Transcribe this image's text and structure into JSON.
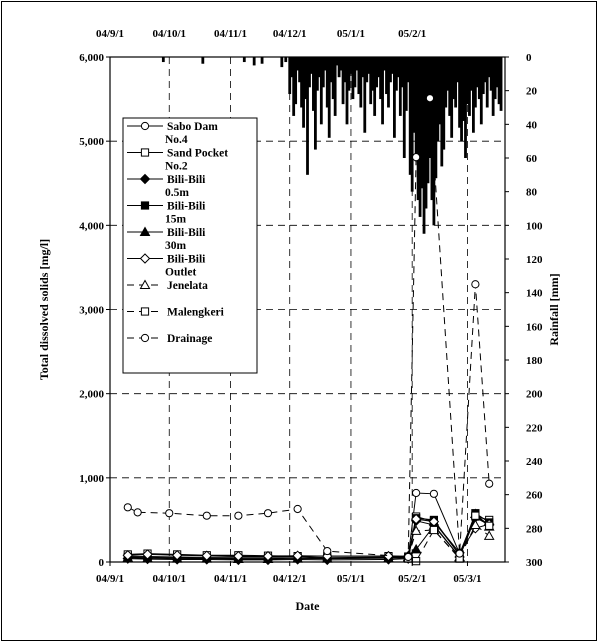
{
  "chart_data": {
    "type": "line",
    "xlabel": "Date",
    "ylabel": "Total dissolved solids [mg/l]",
    "y2label": "Rainfall [mm]",
    "x_bottom_ticks": [
      "04/9/1",
      "04/10/1",
      "04/11/1",
      "04/12/1",
      "05/1/1",
      "05/2/1",
      "05/3/1"
    ],
    "x_top_ticks": [
      "04/9/1",
      "04/10/1",
      "04/11/1",
      "04/12/1",
      "05/1/1",
      "05/2/1"
    ],
    "y_ticks": [
      "0",
      "1,000",
      "2,000",
      "3,000",
      "4,000",
      "5,000",
      "6,000"
    ],
    "y2_ticks": [
      "0",
      "20",
      "40",
      "60",
      "80",
      "100",
      "120",
      "140",
      "160",
      "180",
      "200",
      "220",
      "240",
      "260",
      "280",
      "300"
    ],
    "ylim": [
      0,
      6000
    ],
    "y2lim": [
      0,
      300
    ],
    "y2_inverted": true,
    "xlim": [
      "2004-09-01",
      "2005-03-20"
    ],
    "grid": true,
    "legend_position": "upper-left",
    "series": [
      {
        "name": "Sabo Dam No.4",
        "marker": "circle-open",
        "line": "solid",
        "x": [
          "2004-09-10",
          "2004-09-20",
          "2004-10-05",
          "2004-10-20",
          "2004-11-05",
          "2004-11-20",
          "2004-12-05",
          "2004-12-20",
          "2005-01-20",
          "2005-01-30",
          "2005-02-03",
          "2005-02-12",
          "2005-02-25",
          "2005-03-05",
          "2005-03-12"
        ],
        "y": [
          70,
          65,
          60,
          55,
          60,
          60,
          65,
          50,
          60,
          60,
          820,
          810,
          100,
          560,
          440
        ]
      },
      {
        "name": "Sand Pocket No.2",
        "marker": "square-open",
        "line": "solid",
        "x": [
          "2004-09-10",
          "2004-09-20",
          "2004-10-05",
          "2004-10-20",
          "2004-11-05",
          "2004-11-20",
          "2004-12-05",
          "2004-12-20",
          "2005-01-20",
          "2005-01-30",
          "2005-02-03",
          "2005-02-12",
          "2005-02-25",
          "2005-03-05",
          "2005-03-12"
        ],
        "y": [
          90,
          100,
          90,
          80,
          80,
          75,
          70,
          70,
          70,
          65,
          540,
          480,
          90,
          540,
          500
        ]
      },
      {
        "name": "Bili-Bili 0.5m",
        "marker": "diamond-filled",
        "line": "solid",
        "x": [
          "2004-09-10",
          "2004-09-20",
          "2004-10-05",
          "2004-10-20",
          "2004-11-05",
          "2004-11-20",
          "2004-12-05",
          "2004-12-20",
          "2005-01-20",
          "2005-01-30",
          "2005-02-03",
          "2005-02-12",
          "2005-02-25",
          "2005-03-05",
          "2005-03-12"
        ],
        "y": [
          40,
          35,
          30,
          30,
          25,
          25,
          30,
          25,
          30,
          40,
          490,
          440,
          60,
          530,
          440
        ]
      },
      {
        "name": "Bili-Bili 15m",
        "marker": "square-filled",
        "line": "solid",
        "x": [
          "2004-09-10",
          "2004-09-20",
          "2004-10-05",
          "2004-10-20",
          "2004-11-05",
          "2004-11-20",
          "2004-12-05",
          "2004-12-20",
          "2005-01-20",
          "2005-01-30",
          "2005-02-03",
          "2005-02-12",
          "2005-02-25",
          "2005-03-05",
          "2005-03-12"
        ],
        "y": [
          60,
          55,
          50,
          45,
          45,
          45,
          50,
          45,
          50,
          55,
          520,
          500,
          80,
          580,
          470
        ]
      },
      {
        "name": "Bili-Bili 30m",
        "marker": "triangle-filled",
        "line": "solid",
        "x": [
          "2004-09-10",
          "2004-09-20",
          "2004-10-05",
          "2004-10-20",
          "2004-11-05",
          "2004-11-20",
          "2004-12-05",
          "2004-12-20",
          "2005-01-20",
          "2005-01-30",
          "2005-02-03",
          "2005-02-12",
          "2005-02-25",
          "2005-03-05",
          "2005-03-12"
        ],
        "y": [
          50,
          45,
          40,
          40,
          35,
          35,
          40,
          40,
          45,
          50,
          150,
          430,
          60,
          570,
          420
        ]
      },
      {
        "name": "Bili-Bili Outlet",
        "marker": "diamond-open",
        "line": "solid",
        "x": [
          "2004-09-10",
          "2004-09-20",
          "2004-10-05",
          "2004-10-20",
          "2004-11-05",
          "2004-11-20",
          "2004-12-05",
          "2004-12-20",
          "2005-01-20",
          "2005-01-30",
          "2005-02-03",
          "2005-02-12",
          "2005-02-25",
          "2005-03-05",
          "2005-03-12"
        ],
        "y": [
          80,
          90,
          80,
          75,
          70,
          70,
          75,
          70,
          70,
          70,
          510,
          480,
          110,
          400,
          450
        ]
      },
      {
        "name": "Jenelata",
        "marker": "triangle-open",
        "line": "dashed",
        "x": [
          "2005-01-30",
          "2005-02-03",
          "2005-02-12",
          "2005-02-25",
          "2005-03-05",
          "2005-03-12"
        ],
        "y": [
          60,
          370,
          380,
          50,
          440,
          310
        ]
      },
      {
        "name": "Malengkeri",
        "marker": "square-open",
        "line": "dashed",
        "x": [
          "2005-01-30",
          "2005-02-03",
          "2005-02-12",
          "2005-02-25",
          "2005-03-05",
          "2005-03-12"
        ],
        "y": [
          40,
          10,
          380,
          40,
          550,
          430
        ]
      },
      {
        "name": "Drainage",
        "marker": "circle-open",
        "line": "dashed",
        "x": [
          "2004-09-10",
          "2004-09-15",
          "2004-10-01",
          "2004-10-20",
          "2004-11-05",
          "2004-11-20",
          "2004-12-05",
          "2004-12-20",
          "2005-01-30",
          "2005-02-03",
          "2005-02-10",
          "2005-02-25",
          "2005-03-05",
          "2005-03-12"
        ],
        "y": [
          650,
          590,
          580,
          550,
          550,
          580,
          630,
          130,
          60,
          4810,
          5510,
          100,
          3300,
          930
        ]
      }
    ],
    "rainfall": {
      "type": "bar",
      "axis": "y2",
      "x": [
        "2004-09-28",
        "2004-10-18",
        "2004-11-08",
        "2004-11-13",
        "2004-11-17",
        "2004-11-27",
        "2004-11-29",
        "2004-12-01",
        "2004-12-02",
        "2004-12-03",
        "2004-12-04",
        "2004-12-05",
        "2004-12-06",
        "2004-12-07",
        "2004-12-08",
        "2004-12-09",
        "2004-12-10",
        "2004-12-11",
        "2004-12-12",
        "2004-12-13",
        "2004-12-14",
        "2004-12-15",
        "2004-12-16",
        "2004-12-17",
        "2004-12-18",
        "2004-12-19",
        "2004-12-20",
        "2004-12-21",
        "2004-12-22",
        "2004-12-23",
        "2004-12-24",
        "2004-12-25",
        "2004-12-26",
        "2004-12-27",
        "2004-12-28",
        "2004-12-29",
        "2004-12-30",
        "2004-12-31",
        "2005-01-01",
        "2005-01-02",
        "2005-01-03",
        "2005-01-04",
        "2005-01-05",
        "2005-01-06",
        "2005-01-07",
        "2005-01-08",
        "2005-01-09",
        "2005-01-10",
        "2005-01-11",
        "2005-01-12",
        "2005-01-13",
        "2005-01-14",
        "2005-01-15",
        "2005-01-16",
        "2005-01-17",
        "2005-01-18",
        "2005-01-19",
        "2005-01-20",
        "2005-01-21",
        "2005-01-22",
        "2005-01-23",
        "2005-01-24",
        "2005-01-25",
        "2005-01-26",
        "2005-01-27",
        "2005-01-28",
        "2005-01-29",
        "2005-01-30",
        "2005-01-31",
        "2005-02-01",
        "2005-02-02",
        "2005-02-03",
        "2005-02-04",
        "2005-02-05",
        "2005-02-06",
        "2005-02-07",
        "2005-02-08",
        "2005-02-09",
        "2005-02-10",
        "2005-02-11",
        "2005-02-12",
        "2005-02-13",
        "2005-02-14",
        "2005-02-15",
        "2005-02-16",
        "2005-02-17",
        "2005-02-18",
        "2005-02-19",
        "2005-02-20",
        "2005-02-21",
        "2005-02-22",
        "2005-02-23",
        "2005-02-24",
        "2005-02-25",
        "2005-02-26",
        "2005-02-27",
        "2005-02-28",
        "2005-03-01",
        "2005-03-02",
        "2005-03-03",
        "2005-03-04",
        "2005-03-05",
        "2005-03-06",
        "2005-03-07",
        "2005-03-08",
        "2005-03-09",
        "2005-03-10",
        "2005-03-11",
        "2005-03-12",
        "2005-03-13",
        "2005-03-14",
        "2005-03-15",
        "2005-03-16",
        "2005-03-17",
        "2005-03-18"
      ],
      "values": [
        3,
        4,
        3,
        5,
        4,
        6,
        3,
        22,
        12,
        35,
        28,
        8,
        15,
        30,
        42,
        25,
        70,
        18,
        10,
        32,
        55,
        20,
        12,
        40,
        18,
        8,
        30,
        48,
        15,
        25,
        35,
        5,
        12,
        8,
        28,
        15,
        40,
        20,
        10,
        25,
        18,
        8,
        22,
        30,
        12,
        45,
        15,
        10,
        28,
        20,
        35,
        18,
        12,
        25,
        40,
        8,
        22,
        30,
        15,
        10,
        48,
        20,
        12,
        35,
        18,
        60,
        32,
        15,
        70,
        80,
        45,
        62,
        85,
        95,
        78,
        105,
        90,
        75,
        60,
        85,
        100,
        72,
        50,
        40,
        65,
        55,
        30,
        20,
        35,
        48,
        25,
        30,
        15,
        42,
        50,
        38,
        60,
        28,
        35,
        20,
        45,
        30,
        18,
        25,
        40,
        22,
        15,
        30,
        12,
        20,
        35,
        25,
        18,
        28,
        32
      ]
    }
  }
}
